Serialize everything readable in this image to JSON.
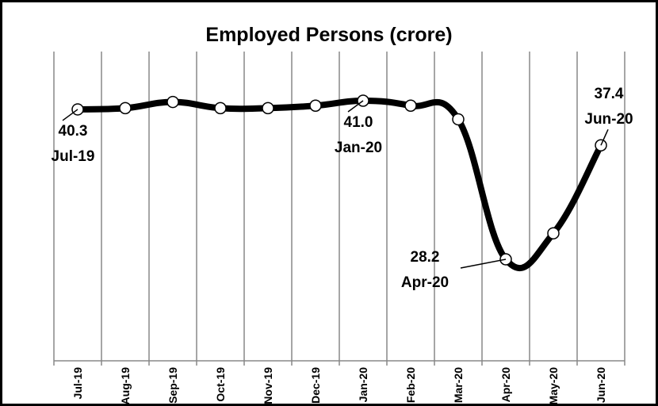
{
  "chart_data": {
    "type": "line",
    "title": "Employed Persons (crore)",
    "categories": [
      "Jul-19",
      "Aug-19",
      "Sep-19",
      "Oct-19",
      "Nov-19",
      "Dec-19",
      "Jan-20",
      "Feb-20",
      "Mar-20",
      "Apr-20",
      "May-20",
      "Jun-20"
    ],
    "values": [
      40.3,
      40.4,
      40.9,
      40.4,
      40.4,
      40.6,
      41.0,
      40.6,
      39.5,
      28.2,
      30.3,
      37.4
    ],
    "value_labels": [
      "40.3",
      null,
      null,
      null,
      null,
      null,
      "41.0",
      null,
      null,
      "28.2",
      null,
      "37.4"
    ],
    "color": "#000000",
    "grid": true
  }
}
